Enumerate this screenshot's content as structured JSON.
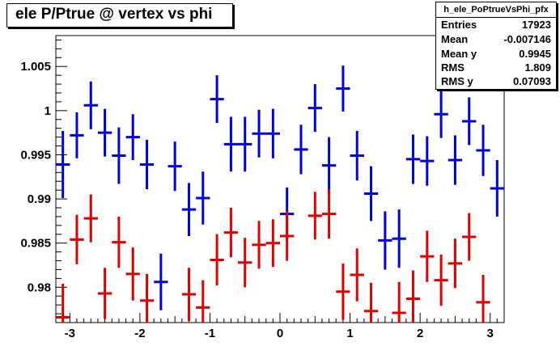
{
  "title": "ele P/Ptrue @ vertex vs phi",
  "stats": {
    "name": "h_ele_PoPtrueVsPhi_pfx",
    "rows": [
      {
        "label": "Entries",
        "value": "17923"
      },
      {
        "label": "Mean",
        "value": "-0.007146"
      },
      {
        "label": "Mean y",
        "value": "0.9945"
      },
      {
        "label": "RMS",
        "value": "1.809"
      },
      {
        "label": "RMS y",
        "value": "0.07093"
      }
    ]
  },
  "colors": {
    "blue": "#0000e0",
    "red": "#e00000"
  },
  "chart_data": {
    "type": "scatter",
    "title": "ele P/Ptrue @ vertex vs phi",
    "xlim": [
      -3.2,
      3.2
    ],
    "ylim": [
      0.976,
      1.0085
    ],
    "x_ticks": [
      -3,
      -2,
      -1,
      0,
      1,
      2,
      3
    ],
    "x_tick_labels": [
      "-3",
      "-2",
      "-1",
      "0",
      "1",
      "2",
      "3"
    ],
    "y_ticks": [
      0.98,
      0.985,
      0.99,
      0.995,
      1,
      1.005
    ],
    "y_tick_labels": [
      "0.98",
      "0.985",
      "0.99",
      "0.995",
      "1",
      "1.005"
    ],
    "grid": false,
    "bin_half_width": 0.1,
    "series": [
      {
        "color": "blue",
        "points": [
          {
            "x": -3.1,
            "y": 0.9939,
            "err": 0.0038
          },
          {
            "x": -2.9,
            "y": 0.9972,
            "err": 0.0026
          },
          {
            "x": -2.7,
            "y": 1.0006,
            "err": 0.0027
          },
          {
            "x": -2.5,
            "y": 0.9975,
            "err": 0.0027
          },
          {
            "x": -2.3,
            "y": 0.9949,
            "err": 0.0032
          },
          {
            "x": -2.1,
            "y": 0.997,
            "err": 0.0026
          },
          {
            "x": -1.9,
            "y": 0.9939,
            "err": 0.0028
          },
          {
            "x": -1.5,
            "y": 0.9937,
            "err": 0.0028
          },
          {
            "x": -1.7,
            "y": 0.9806,
            "err": 0.0032
          },
          {
            "x": -1.3,
            "y": 0.9888,
            "err": 0.003
          },
          {
            "x": -1.1,
            "y": 0.9901,
            "err": 0.003
          },
          {
            "x": -0.9,
            "y": 1.0013,
            "err": 0.0027
          },
          {
            "x": -0.7,
            "y": 0.9962,
            "err": 0.0031
          },
          {
            "x": -0.5,
            "y": 0.9962,
            "err": 0.0031
          },
          {
            "x": -0.3,
            "y": 0.9974,
            "err": 0.0027
          },
          {
            "x": -0.1,
            "y": 0.9974,
            "err": 0.0028
          },
          {
            "x": 0.1,
            "y": 0.9883,
            "err": 0.003
          },
          {
            "x": 0.3,
            "y": 0.9956,
            "err": 0.0028
          },
          {
            "x": 0.5,
            "y": 1.0003,
            "err": 0.0027
          },
          {
            "x": 0.7,
            "y": 0.9938,
            "err": 0.0032
          },
          {
            "x": 0.9,
            "y": 1.0025,
            "err": 0.0026
          },
          {
            "x": 1.1,
            "y": 0.9949,
            "err": 0.0028
          },
          {
            "x": 1.3,
            "y": 0.9906,
            "err": 0.0031
          },
          {
            "x": 1.5,
            "y": 0.9853,
            "err": 0.0033
          },
          {
            "x": 1.7,
            "y": 0.9855,
            "err": 0.0033
          },
          {
            "x": 1.9,
            "y": 0.9945,
            "err": 0.0028
          },
          {
            "x": 2.1,
            "y": 0.9943,
            "err": 0.0028
          },
          {
            "x": 2.3,
            "y": 0.9996,
            "err": 0.0027
          },
          {
            "x": 2.5,
            "y": 0.9944,
            "err": 0.0028
          },
          {
            "x": 2.7,
            "y": 0.9988,
            "err": 0.0027
          },
          {
            "x": 2.9,
            "y": 0.9955,
            "err": 0.0029
          },
          {
            "x": 3.1,
            "y": 0.9912,
            "err": 0.0032
          }
        ]
      },
      {
        "color": "red",
        "points": [
          {
            "x": -3.1,
            "y": 0.9766,
            "err": 0.0038
          },
          {
            "x": -2.9,
            "y": 0.9854,
            "err": 0.0028
          },
          {
            "x": -2.7,
            "y": 0.9878,
            "err": 0.0027
          },
          {
            "x": -2.5,
            "y": 0.9793,
            "err": 0.0029
          },
          {
            "x": -2.3,
            "y": 0.9851,
            "err": 0.0029
          },
          {
            "x": -2.1,
            "y": 0.9815,
            "err": 0.003
          },
          {
            "x": -1.9,
            "y": 0.9785,
            "err": 0.003
          },
          {
            "x": -1.3,
            "y": 0.9792,
            "err": 0.003
          },
          {
            "x": -1.1,
            "y": 0.9777,
            "err": 0.0031
          },
          {
            "x": -0.9,
            "y": 0.9831,
            "err": 0.0029
          },
          {
            "x": -0.7,
            "y": 0.9862,
            "err": 0.0028
          },
          {
            "x": -0.5,
            "y": 0.9828,
            "err": 0.0028
          },
          {
            "x": -0.3,
            "y": 0.9848,
            "err": 0.0027
          },
          {
            "x": -0.1,
            "y": 0.985,
            "err": 0.0027
          },
          {
            "x": 0.1,
            "y": 0.9858,
            "err": 0.0028
          },
          {
            "x": 0.5,
            "y": 0.9881,
            "err": 0.0027
          },
          {
            "x": 0.7,
            "y": 0.9883,
            "err": 0.0028
          },
          {
            "x": 0.9,
            "y": 0.9795,
            "err": 0.0032
          },
          {
            "x": 1.1,
            "y": 0.9814,
            "err": 0.003
          },
          {
            "x": 1.3,
            "y": 0.9773,
            "err": 0.0032
          },
          {
            "x": 1.7,
            "y": 0.9771,
            "err": 0.0035
          },
          {
            "x": 1.9,
            "y": 0.9787,
            "err": 0.0032
          },
          {
            "x": 2.1,
            "y": 0.9835,
            "err": 0.0029
          },
          {
            "x": 2.3,
            "y": 0.9808,
            "err": 0.0029
          },
          {
            "x": 2.5,
            "y": 0.9827,
            "err": 0.0028
          },
          {
            "x": 2.7,
            "y": 0.9857,
            "err": 0.0027
          },
          {
            "x": 2.9,
            "y": 0.9783,
            "err": 0.0031
          }
        ]
      }
    ]
  }
}
